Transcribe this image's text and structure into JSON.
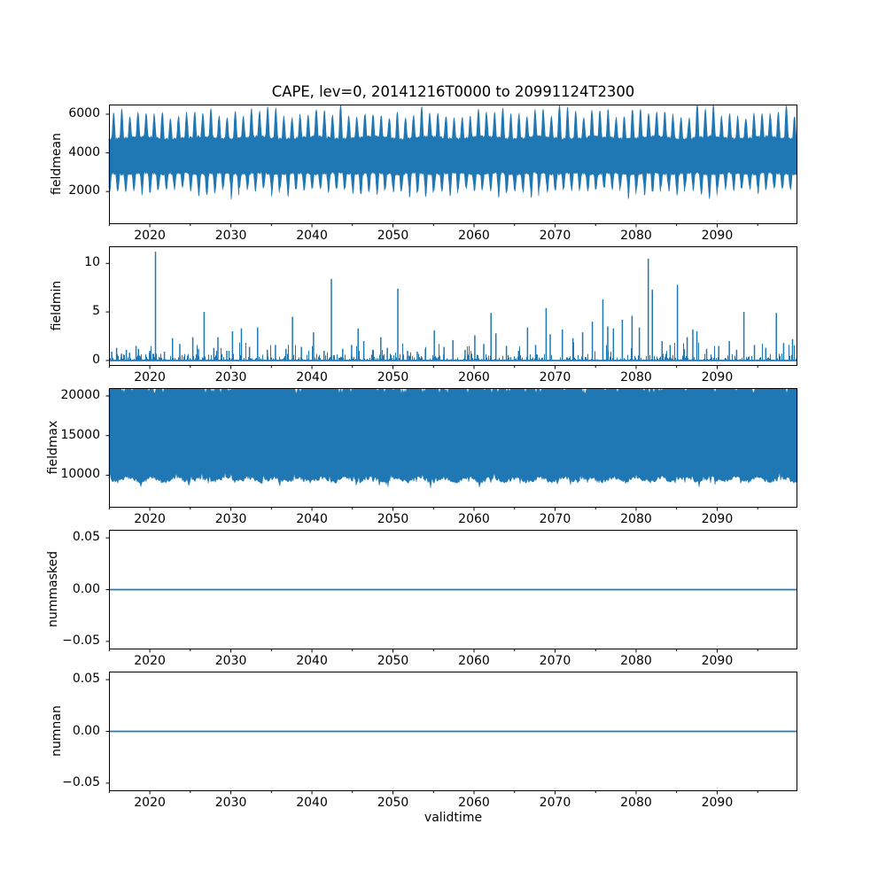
{
  "figure": {
    "title": "CAPE, lev=0, 20141216T0000 to 20991124T2300",
    "xlabel": "validtime",
    "line_color": "#1f77b4",
    "background": "#ffffff",
    "x_range": [
      2014.96,
      2099.9
    ],
    "x_major_ticks": [
      2020,
      2030,
      2040,
      2050,
      2060,
      2070,
      2080,
      2090
    ],
    "x_major_labels": [
      "2020",
      "2030",
      "2040",
      "2050",
      "2060",
      "2070",
      "2080",
      "2090"
    ],
    "x_minor_ticks": [
      2015,
      2025,
      2035,
      2045,
      2055,
      2065,
      2075,
      2085,
      2095
    ]
  },
  "chart_data": [
    {
      "type": "line",
      "ylabel": "fieldmean",
      "y_ticks": [
        2000,
        4000,
        6000
      ],
      "y_tick_labels": [
        "2000",
        "4000",
        "6000"
      ],
      "y_range": [
        310,
        6500
      ],
      "render": "band",
      "band": {
        "core_top": 4780,
        "core_bottom": 2930,
        "annual_peak_typ": 5750,
        "annual_peak_max": 6150,
        "annual_trough_typ": 2250,
        "annual_trough_min": 1900,
        "period_years": 1,
        "seed": 11
      },
      "summary": "hourly mean CAPE oscillating ~2000-6000 with annual cycle"
    },
    {
      "type": "line",
      "ylabel": "fieldmin",
      "y_ticks": [
        0,
        5,
        10
      ],
      "y_tick_labels": [
        "0",
        "5",
        "10"
      ],
      "y_range": [
        -0.56,
        11.76
      ],
      "render": "spikes",
      "noise": {
        "carpet_max": 0.9,
        "seed": 7
      },
      "spikes": [
        [
          2015.3,
          0.9
        ],
        [
          2015.9,
          1.3
        ],
        [
          2016.5,
          0.7
        ],
        [
          2017.1,
          1.1
        ],
        [
          2017.5,
          0.8
        ],
        [
          2018.3,
          1.5
        ],
        [
          2018.6,
          1.2
        ],
        [
          2020.0,
          1.0
        ],
        [
          2020.7,
          11.2
        ],
        [
          2021.8,
          0.9
        ],
        [
          2022.8,
          2.3
        ],
        [
          2023.7,
          1.7
        ],
        [
          2025.3,
          2.4
        ],
        [
          2026.0,
          1.2
        ],
        [
          2026.7,
          5.0
        ],
        [
          2027.9,
          1.3
        ],
        [
          2028.4,
          2.4
        ],
        [
          2029.5,
          1.0
        ],
        [
          2030.2,
          3.0
        ],
        [
          2031.3,
          3.3
        ],
        [
          2032.3,
          1.4
        ],
        [
          2033.3,
          3.4
        ],
        [
          2034.5,
          1.1
        ],
        [
          2035.5,
          1.6
        ],
        [
          2036.8,
          1.2
        ],
        [
          2037.6,
          4.5
        ],
        [
          2038.7,
          1.4
        ],
        [
          2040.2,
          2.9
        ],
        [
          2041.5,
          1.0
        ],
        [
          2042.4,
          8.4
        ],
        [
          2043.8,
          1.2
        ],
        [
          2044.9,
          1.6
        ],
        [
          2045.7,
          3.3
        ],
        [
          2046.4,
          2.0
        ],
        [
          2047.5,
          1.1
        ],
        [
          2048.5,
          2.4
        ],
        [
          2049.3,
          1.3
        ],
        [
          2050.6,
          7.4
        ],
        [
          2051.8,
          1.0
        ],
        [
          2053.0,
          0.9
        ],
        [
          2054.0,
          1.2
        ],
        [
          2055.1,
          3.1
        ],
        [
          2056.3,
          1.4
        ],
        [
          2057.4,
          2.1
        ],
        [
          2058.9,
          1.1
        ],
        [
          2060.1,
          2.6
        ],
        [
          2061.2,
          1.7
        ],
        [
          2062.1,
          4.9
        ],
        [
          2062.7,
          2.8
        ],
        [
          2064.0,
          1.5
        ],
        [
          2065.5,
          1.0
        ],
        [
          2066.6,
          3.4
        ],
        [
          2067.6,
          1.6
        ],
        [
          2068.9,
          5.4
        ],
        [
          2069.4,
          2.7
        ],
        [
          2070.9,
          3.2
        ],
        [
          2072.2,
          2.3
        ],
        [
          2073.4,
          2.9
        ],
        [
          2074.6,
          4.0
        ],
        [
          2075.9,
          6.3
        ],
        [
          2076.5,
          3.5
        ],
        [
          2077.2,
          3.3
        ],
        [
          2078.3,
          4.2
        ],
        [
          2079.5,
          4.6
        ],
        [
          2080.4,
          3.4
        ],
        [
          2081.5,
          10.5
        ],
        [
          2082.0,
          7.3
        ],
        [
          2083.2,
          2.0
        ],
        [
          2084.2,
          1.6
        ],
        [
          2085.1,
          7.8
        ],
        [
          2086.3,
          2.4
        ],
        [
          2087.0,
          3.2
        ],
        [
          2087.5,
          3.0
        ],
        [
          2088.7,
          1.2
        ],
        [
          2090.2,
          1.5
        ],
        [
          2091.5,
          2.0
        ],
        [
          2092.4,
          1.1
        ],
        [
          2093.3,
          5.0
        ],
        [
          2094.6,
          1.6
        ],
        [
          2096.0,
          1.3
        ],
        [
          2097.3,
          4.9
        ],
        [
          2098.2,
          1.8
        ],
        [
          2099.3,
          2.2
        ]
      ],
      "summary": "mostly near 0 with sporadic spikes; maximum ~11.2 near 2021"
    },
    {
      "type": "line",
      "ylabel": "fieldmax",
      "y_ticks": [
        10000,
        15000,
        20000
      ],
      "y_tick_labels": [
        "10000",
        "15000",
        "20000"
      ],
      "y_range": [
        5900,
        21000
      ],
      "render": "band",
      "band": {
        "top_level": 20890,
        "top_notch_min": 20300,
        "bottom_mean": 9450,
        "bottom_jitter": 520,
        "bottom_dip_min": 8500,
        "bottom_bump_max": 10400,
        "seed": 23
      },
      "summary": "dense band saturating near ~20000+ cap down to jagged floor ~9000-10000"
    },
    {
      "type": "line",
      "ylabel": "nummasked",
      "y_ticks": [
        0.05,
        0.0,
        -0.05
      ],
      "y_tick_labels": [
        "0.05",
        "0.00",
        "−0.05"
      ],
      "y_range": [
        -0.0578,
        0.0578
      ],
      "render": "flat",
      "value": 0.0,
      "summary": "constant 0"
    },
    {
      "type": "line",
      "ylabel": "numnan",
      "y_ticks": [
        0.05,
        0.0,
        -0.05
      ],
      "y_tick_labels": [
        "0.05",
        "0.00",
        "−0.05"
      ],
      "y_range": [
        -0.0578,
        0.0578
      ],
      "render": "flat",
      "value": 0.0,
      "summary": "constant 0"
    }
  ]
}
